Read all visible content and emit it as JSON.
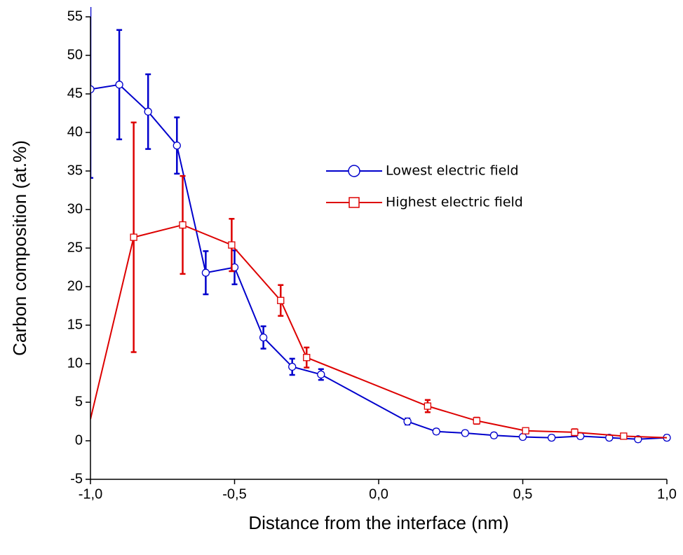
{
  "chart_data": {
    "type": "line",
    "x_label": "Distance from the interface (nm)",
    "y_label": "Carbon composition (at.%)",
    "xlim": [
      -1,
      1
    ],
    "xticks": [
      {
        "value": -1,
        "label": "-1,0"
      },
      {
        "value": -0.5,
        "label": "-0,5"
      },
      {
        "value": 0,
        "label": "0,0"
      },
      {
        "value": 0.5,
        "label": "0,5"
      },
      {
        "value": 1,
        "label": "1,0"
      }
    ],
    "ylim": [
      -5,
      55
    ],
    "yticks": [
      -5,
      0,
      5,
      10,
      15,
      20,
      25,
      30,
      35,
      40,
      45,
      50,
      55
    ],
    "series": [
      {
        "name": "Lowest electric field",
        "color": "#0000cc",
        "marker": "circle",
        "x": [
          -1.0,
          -0.9,
          -0.8,
          -0.7,
          -0.6,
          -0.5,
          -0.4,
          -0.3,
          -0.2,
          0.1,
          0.2,
          0.3,
          0.4,
          0.5,
          0.6,
          0.7,
          0.8,
          0.9,
          1.0
        ],
        "values": [
          45.6,
          46.2,
          42.7,
          38.3,
          21.8,
          22.5,
          13.4,
          9.6,
          8.6,
          2.5,
          1.2,
          1.0,
          0.7,
          0.5,
          0.4,
          0.6,
          0.4,
          0.2,
          0.4
        ],
        "errors": [
          11.5,
          7.1,
          4.85,
          3.65,
          2.8,
          2.2,
          1.45,
          1.05,
          0.7,
          0.4,
          0.3,
          0.3,
          0.3,
          0.3,
          0.3,
          0.3,
          0.3,
          0.3,
          0.3
        ]
      },
      {
        "name": "Highest electric field",
        "color": "#dd0000",
        "marker": "square",
        "x": [
          -1.0,
          -0.85,
          -0.68,
          -0.51,
          -0.34,
          -0.25,
          0.17,
          0.34,
          0.51,
          0.68,
          0.85,
          1.0
        ],
        "values": [
          2.8,
          26.4,
          28.0,
          25.4,
          18.2,
          10.8,
          4.5,
          2.6,
          1.3,
          1.1,
          0.6,
          0.4
        ],
        "errors": [
          null,
          14.9,
          6.35,
          3.4,
          2.0,
          1.3,
          0.8,
          0.4,
          0.3,
          0.4,
          0.3,
          null
        ]
      }
    ]
  }
}
